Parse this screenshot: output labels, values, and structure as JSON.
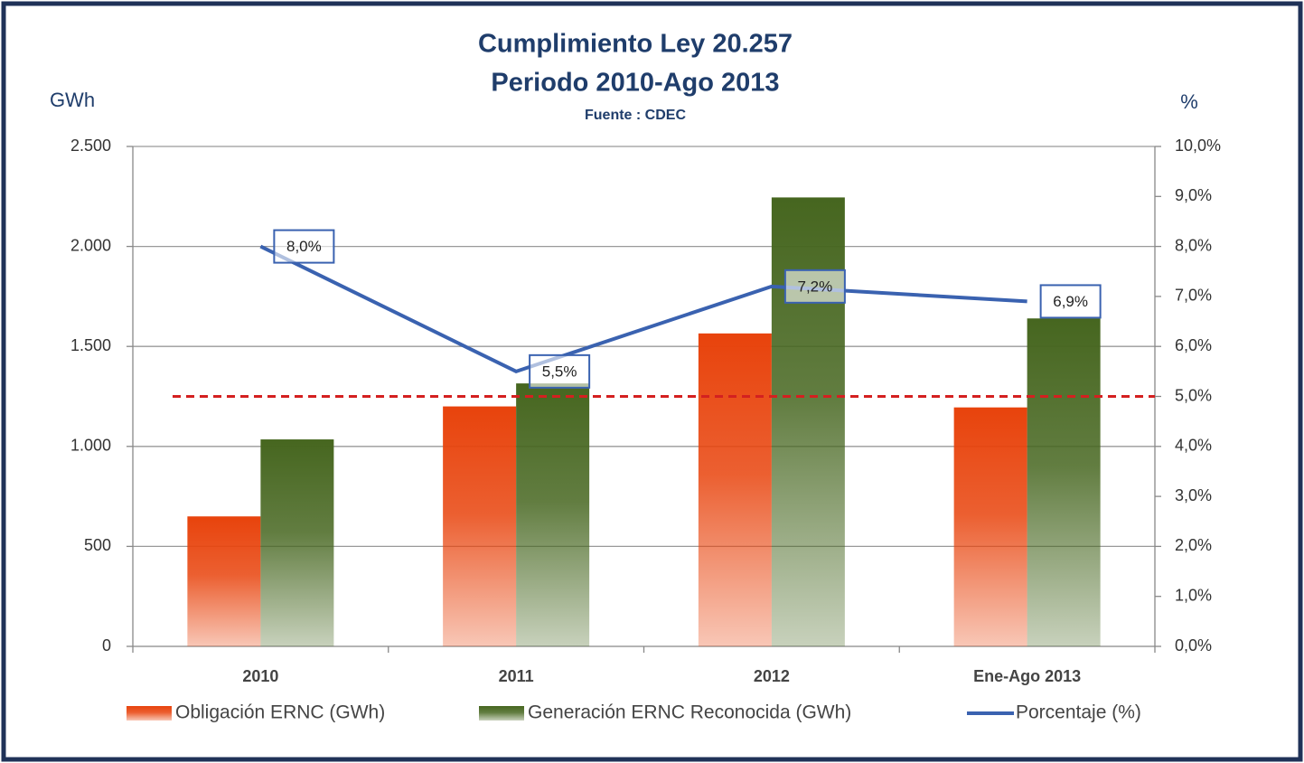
{
  "chart_data": {
    "type": "bar",
    "title": [
      "Cumplimiento Ley 20.257",
      "Periodo  2010-Ago 2013"
    ],
    "subtitle": "Fuente : CDEC",
    "y_label": "GWh",
    "y2_label": "%",
    "categories": [
      "2010",
      "2011",
      "2012",
      "Ene-Ago 2013"
    ],
    "series": [
      {
        "name": "Obligación ERNC (GWh)",
        "type": "bar",
        "color": "#e8430c",
        "values": [
          650,
          1200,
          1565,
          1195
        ]
      },
      {
        "name": "Generación ERNC Reconocida (GWh)",
        "type": "bar",
        "color": "#46661f",
        "values": [
          1035,
          1315,
          2245,
          1640
        ]
      },
      {
        "name": "Porcentaje (%)",
        "type": "line",
        "axis": "y2",
        "color": "#3a62b0",
        "values": [
          8.0,
          5.5,
          7.2,
          6.9
        ],
        "value_labels": [
          "8,0%",
          "5,5%",
          "7,2%",
          "6,9%"
        ]
      }
    ],
    "reference_line": {
      "value": 5,
      "axis": "y2",
      "color": "#d42020"
    },
    "ylim": [
      0,
      2500
    ],
    "yticks": [
      0,
      500,
      {
        "value": 1000,
        "label": "1.000"
      },
      {
        "value": 1500,
        "label": "1.500"
      },
      {
        "value": 2000,
        "label": "2.000"
      },
      {
        "value": 2500,
        "label": "2.500"
      }
    ],
    "y2lim": [
      0,
      10
    ],
    "y2ticks": [
      {
        "value": 0,
        "label": "0,0%"
      },
      {
        "value": 1,
        "label": "1,0%"
      },
      {
        "value": 2,
        "label": "2,0%"
      },
      {
        "value": 3,
        "label": "3,0%"
      },
      {
        "value": 4,
        "label": "4,0%"
      },
      {
        "value": 5,
        "label": "5,0%"
      },
      {
        "value": 6,
        "label": "6,0%"
      },
      {
        "value": 7,
        "label": "7,0%"
      },
      {
        "value": 8,
        "label": "8,0%"
      },
      {
        "value": 9,
        "label": "9,0%"
      },
      {
        "value": 10,
        "label": "10,0%"
      }
    ],
    "grid": true,
    "legend": "bottom"
  }
}
